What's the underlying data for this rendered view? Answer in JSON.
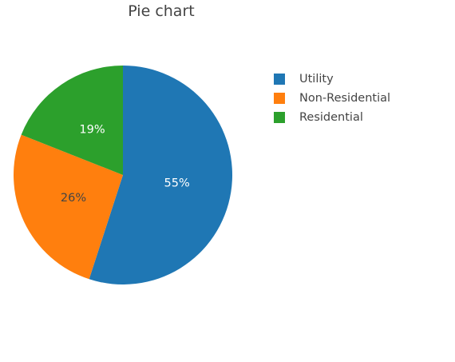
{
  "chart_data": {
    "type": "pie",
    "title": "Pie chart",
    "labels": [
      "Utility",
      "Non-Residential",
      "Residential"
    ],
    "values": [
      55,
      26,
      19
    ],
    "text_labels": [
      "55%",
      "26%",
      "19%"
    ],
    "colors": [
      "#1f77b4",
      "#ff7f0e",
      "#2ca02c"
    ],
    "label_text_colors": [
      "#ffffff",
      "#444444",
      "#ffffff"
    ],
    "legend_position": "top-right",
    "direction": "clockwise",
    "start": "top"
  }
}
